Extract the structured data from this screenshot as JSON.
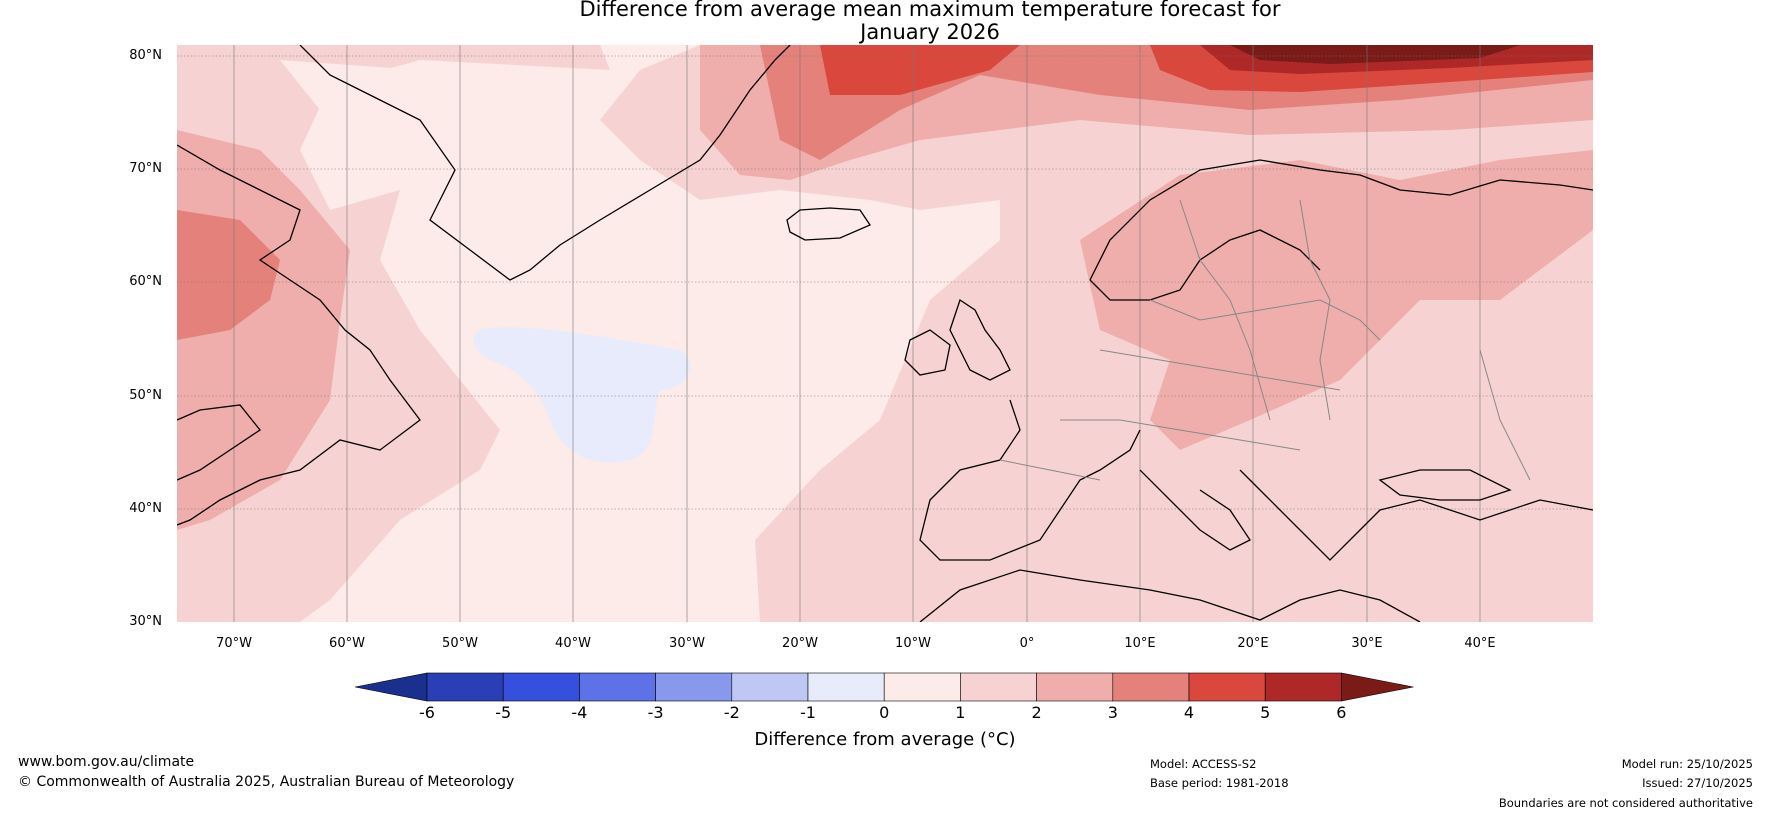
{
  "title_line1": "Difference from average mean maximum temperature forecast for",
  "title_line2": "January 2026",
  "map": {
    "lat_labels": [
      "80°N",
      "70°N",
      "60°N",
      "50°N",
      "40°N",
      "30°N"
    ],
    "lon_labels": [
      "70°W",
      "60°W",
      "50°W",
      "40°W",
      "30°W",
      "20°W",
      "10°W",
      "0°",
      "10°E",
      "20°E",
      "30°E",
      "40°E"
    ],
    "extent": {
      "lon_min": -75,
      "lon_max": 50,
      "lat_min": 30,
      "lat_max": 81
    }
  },
  "colorbar": {
    "ticks": [
      "-6",
      "-5",
      "-4",
      "-3",
      "-2",
      "-1",
      "0",
      "1",
      "2",
      "3",
      "4",
      "5",
      "6"
    ],
    "colors": [
      "#1b2f8f",
      "#2a3fb5",
      "#3450dc",
      "#5c72e6",
      "#8898ec",
      "#bfc8f5",
      "#e8ebfb",
      "#fcebe9",
      "#f6d3d2",
      "#efadab",
      "#e5817b",
      "#d9473d",
      "#ad2826",
      "#7a1b18"
    ],
    "label": "Difference from average (°C)"
  },
  "footer": {
    "website": "www.bom.gov.au/climate",
    "copyright": "© Commonwealth of Australia 2025, Australian Bureau of Meteorology",
    "model": "Model: ACCESS-S2",
    "base_period": "Base period: 1981-2018",
    "model_run": "Model run: 25/10/2025",
    "issued": "Issued: 27/10/2025",
    "disclaimer": "Boundaries are not considered authoritative"
  }
}
